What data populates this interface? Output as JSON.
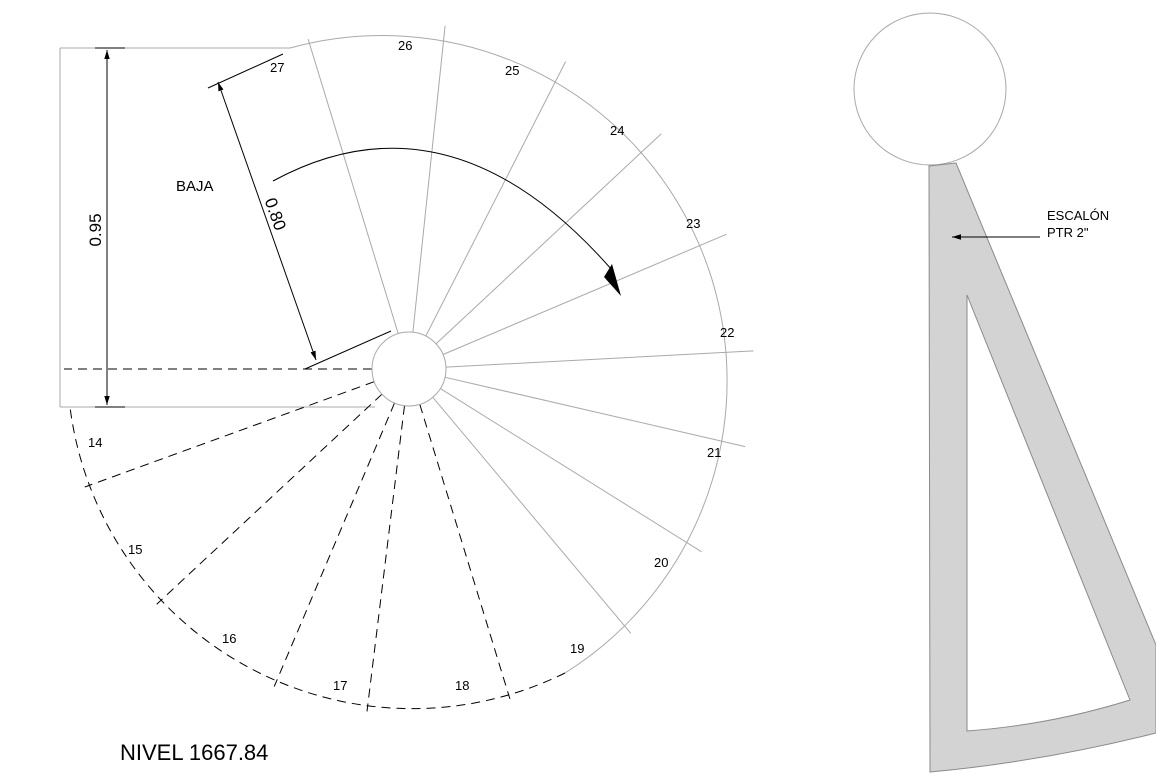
{
  "plan": {
    "direction_label": "BAJA",
    "level_label": "NIVEL 1667.84",
    "dimensions": {
      "width": "0.95",
      "tread": "0.80"
    },
    "steps": [
      {
        "n": "14",
        "style": "dashed"
      },
      {
        "n": "15",
        "style": "dashed"
      },
      {
        "n": "16",
        "style": "dashed"
      },
      {
        "n": "17",
        "style": "dashed"
      },
      {
        "n": "18",
        "style": "dashed"
      },
      {
        "n": "19",
        "style": "solid"
      },
      {
        "n": "20",
        "style": "solid"
      },
      {
        "n": "21",
        "style": "solid"
      },
      {
        "n": "22",
        "style": "solid"
      },
      {
        "n": "23",
        "style": "solid"
      },
      {
        "n": "24",
        "style": "solid"
      },
      {
        "n": "25",
        "style": "solid"
      },
      {
        "n": "26",
        "style": "solid"
      },
      {
        "n": "27",
        "style": "solid"
      }
    ]
  },
  "detail": {
    "callout_line1": "ESCALÓN",
    "callout_line2": "PTR 2\"",
    "fill_color": "#d3d3d3"
  }
}
